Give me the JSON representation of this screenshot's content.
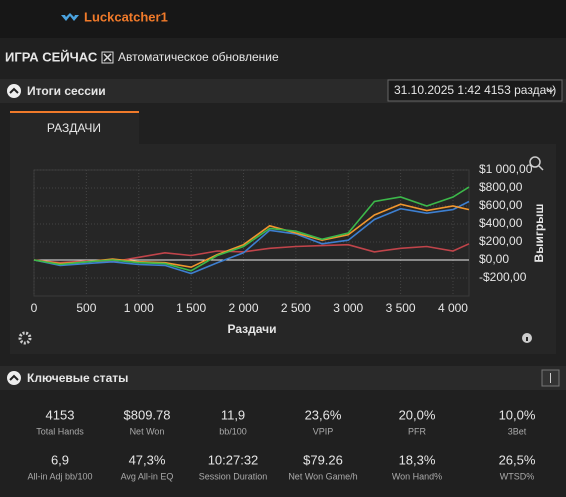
{
  "header": {
    "app": "Luckcatcher1",
    "section": "ИГРА СЕЙЧАС",
    "auto_update": "Автоматическое обновление"
  },
  "session": {
    "title": "Итоги сессии",
    "dropdown": "31.10.2025 1:42 4153 раздач)",
    "tab": "РАЗДАЧИ"
  },
  "chart_data": {
    "type": "line",
    "xlabel": "Раздачи",
    "ylabel": "Выигрыш",
    "x": [
      0,
      250,
      500,
      750,
      1000,
      1250,
      1500,
      1750,
      2000,
      2250,
      2500,
      2750,
      3000,
      3250,
      3500,
      3750,
      4000,
      4153
    ],
    "series": [
      {
        "color": "#3cb84a",
        "values": [
          0,
          -50,
          -20,
          0,
          -30,
          -40,
          -120,
          50,
          150,
          350,
          320,
          230,
          300,
          650,
          700,
          600,
          700,
          810
        ]
      },
      {
        "color": "#f0962e",
        "values": [
          0,
          -40,
          -20,
          10,
          -20,
          -30,
          -80,
          60,
          170,
          380,
          300,
          220,
          280,
          500,
          620,
          550,
          600,
          560
        ]
      },
      {
        "color": "#3d7fd0",
        "values": [
          0,
          -60,
          -40,
          -20,
          -50,
          -60,
          -150,
          -30,
          80,
          330,
          290,
          180,
          220,
          450,
          570,
          520,
          560,
          650
        ]
      },
      {
        "color": "#c0444a",
        "values": [
          0,
          -30,
          -10,
          -20,
          30,
          80,
          50,
          100,
          90,
          130,
          150,
          160,
          170,
          90,
          130,
          150,
          100,
          180
        ]
      }
    ],
    "xlim": [
      0,
      4153
    ],
    "ylim": [
      -400,
      1000
    ],
    "xticks": [
      0,
      500,
      {
        "value": 1000,
        "label": "1 000"
      },
      {
        "value": 1500,
        "label": "1 500"
      },
      {
        "value": 2000,
        "label": "2 000"
      },
      {
        "value": 2500,
        "label": "2 500"
      },
      {
        "value": 3000,
        "label": "3 000"
      },
      {
        "value": 3500,
        "label": "3 500"
      },
      {
        "value": 4000,
        "label": "4 000"
      }
    ],
    "yticks": [
      {
        "value": -200,
        "label": "-$200,00"
      },
      {
        "value": 0,
        "label": "$0,00"
      },
      {
        "value": 200,
        "label": "$200,00"
      },
      {
        "value": 400,
        "label": "$400,00"
      },
      {
        "value": 600,
        "label": "$600,00"
      },
      {
        "value": 800,
        "label": "$800,00"
      },
      {
        "value": 1000,
        "label": "$1 000,00"
      }
    ],
    "grid": true
  },
  "stats_title": "Ключевые статы",
  "stats": [
    {
      "value": "4153",
      "label": "Total Hands"
    },
    {
      "value": "$809.78",
      "label": "Net Won"
    },
    {
      "value": "11,9",
      "label": "bb/100"
    },
    {
      "value": "23,6%",
      "label": "VPIP"
    },
    {
      "value": "20,0%",
      "label": "PFR"
    },
    {
      "value": "10,0%",
      "label": "3Bet"
    },
    {
      "value": "6,9",
      "label": "All-in Adj bb/100"
    },
    {
      "value": "47,3%",
      "label": "Avg All-in EQ"
    },
    {
      "value": "10:27:32",
      "label": "Session Duration"
    },
    {
      "value": "$79.26",
      "label": "Net Won Game/h"
    },
    {
      "value": "18,3%",
      "label": "Won Hand%"
    },
    {
      "value": "26,5%",
      "label": "WTSD%"
    }
  ]
}
